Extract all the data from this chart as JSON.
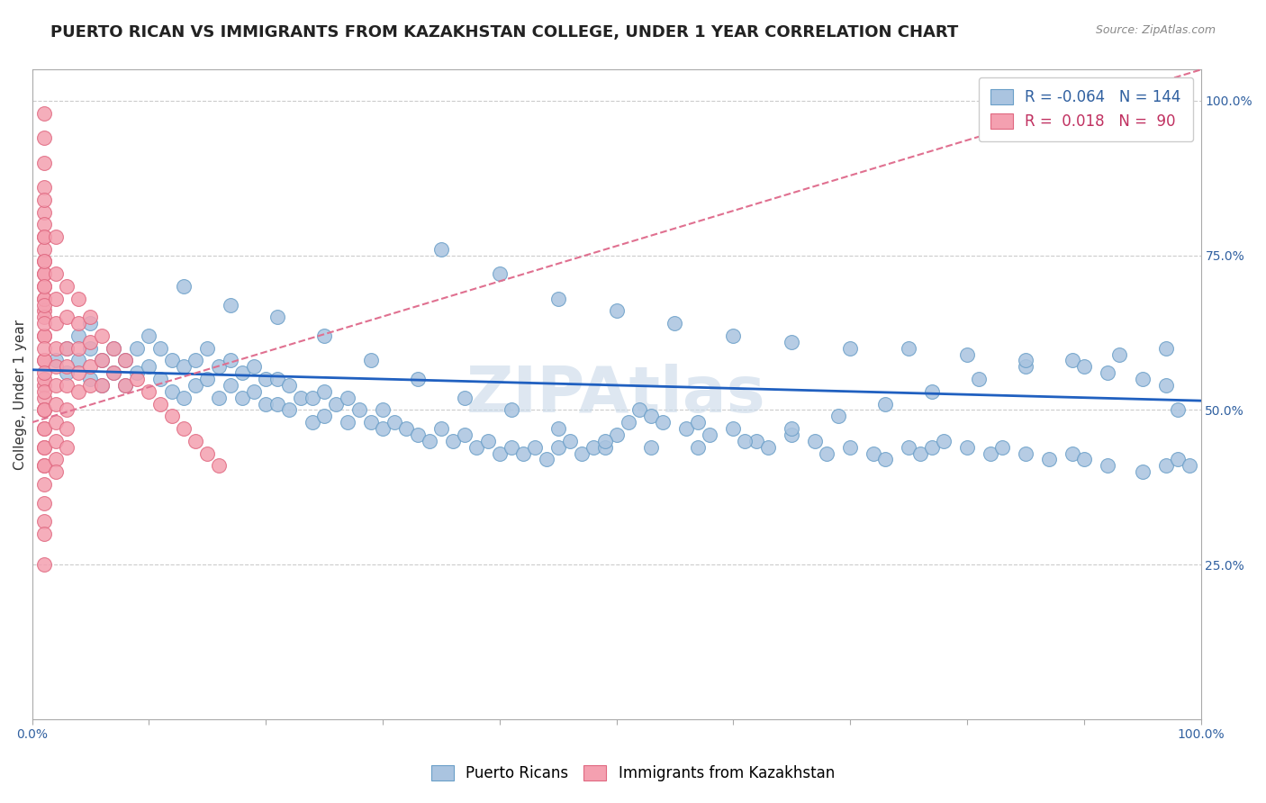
{
  "title": "PUERTO RICAN VS IMMIGRANTS FROM KAZAKHSTAN COLLEGE, UNDER 1 YEAR CORRELATION CHART",
  "source_text": "Source: ZipAtlas.com",
  "ylabel": "College, Under 1 year",
  "right_ytick_labels": [
    "25.0%",
    "50.0%",
    "75.0%",
    "100.0%"
  ],
  "right_ytick_values": [
    0.25,
    0.5,
    0.75,
    1.0
  ],
  "xlim": [
    0.0,
    1.0
  ],
  "ylim": [
    0.0,
    1.05
  ],
  "blue_R": -0.064,
  "blue_N": 144,
  "pink_R": 0.018,
  "pink_N": 90,
  "blue_color": "#aac4e0",
  "pink_color": "#f4a0b0",
  "blue_edge_color": "#6a9fc8",
  "pink_edge_color": "#e06880",
  "blue_line_color": "#2060c0",
  "pink_line_color": "#e07090",
  "legend_blue_fill": "#aac4e0",
  "legend_pink_fill": "#f4a0b0",
  "watermark_text": "ZIPAtlas",
  "watermark_color": "#c8d8e8",
  "title_fontsize": 13,
  "axis_label_fontsize": 11,
  "tick_fontsize": 10,
  "legend_fontsize": 12,
  "source_fontsize": 9,
  "blue_trend_x0": 0.0,
  "blue_trend_y0": 0.565,
  "blue_trend_x1": 1.0,
  "blue_trend_y1": 0.515,
  "pink_trend_x0": 0.0,
  "pink_trend_y0": 0.48,
  "pink_trend_x1": 1.0,
  "pink_trend_y1": 1.05,
  "blue_scatter_x": [
    0.02,
    0.03,
    0.03,
    0.04,
    0.04,
    0.05,
    0.05,
    0.05,
    0.06,
    0.06,
    0.07,
    0.07,
    0.08,
    0.08,
    0.09,
    0.09,
    0.1,
    0.1,
    0.11,
    0.11,
    0.12,
    0.12,
    0.13,
    0.13,
    0.14,
    0.14,
    0.15,
    0.15,
    0.16,
    0.16,
    0.17,
    0.17,
    0.18,
    0.18,
    0.19,
    0.19,
    0.2,
    0.2,
    0.21,
    0.21,
    0.22,
    0.22,
    0.23,
    0.24,
    0.24,
    0.25,
    0.25,
    0.26,
    0.27,
    0.27,
    0.28,
    0.29,
    0.3,
    0.3,
    0.31,
    0.32,
    0.33,
    0.34,
    0.35,
    0.36,
    0.37,
    0.38,
    0.39,
    0.4,
    0.41,
    0.42,
    0.43,
    0.44,
    0.45,
    0.46,
    0.47,
    0.48,
    0.49,
    0.5,
    0.51,
    0.52,
    0.53,
    0.54,
    0.56,
    0.57,
    0.58,
    0.6,
    0.62,
    0.63,
    0.65,
    0.67,
    0.68,
    0.7,
    0.72,
    0.73,
    0.75,
    0.76,
    0.77,
    0.78,
    0.8,
    0.82,
    0.83,
    0.85,
    0.87,
    0.89,
    0.9,
    0.92,
    0.95,
    0.97,
    0.98,
    0.99,
    0.13,
    0.17,
    0.21,
    0.25,
    0.29,
    0.33,
    0.37,
    0.41,
    0.45,
    0.49,
    0.53,
    0.57,
    0.61,
    0.65,
    0.69,
    0.73,
    0.77,
    0.81,
    0.85,
    0.89,
    0.93,
    0.97,
    0.35,
    0.4,
    0.45,
    0.5,
    0.55,
    0.6,
    0.65,
    0.7,
    0.75,
    0.8,
    0.85,
    0.9,
    0.92,
    0.95,
    0.97,
    0.98
  ],
  "blue_scatter_y": [
    0.58,
    0.6,
    0.56,
    0.62,
    0.58,
    0.64,
    0.6,
    0.55,
    0.58,
    0.54,
    0.6,
    0.56,
    0.58,
    0.54,
    0.6,
    0.56,
    0.62,
    0.57,
    0.6,
    0.55,
    0.58,
    0.53,
    0.57,
    0.52,
    0.58,
    0.54,
    0.6,
    0.55,
    0.57,
    0.52,
    0.58,
    0.54,
    0.56,
    0.52,
    0.57,
    0.53,
    0.55,
    0.51,
    0.55,
    0.51,
    0.54,
    0.5,
    0.52,
    0.52,
    0.48,
    0.53,
    0.49,
    0.51,
    0.52,
    0.48,
    0.5,
    0.48,
    0.5,
    0.47,
    0.48,
    0.47,
    0.46,
    0.45,
    0.47,
    0.45,
    0.46,
    0.44,
    0.45,
    0.43,
    0.44,
    0.43,
    0.44,
    0.42,
    0.44,
    0.45,
    0.43,
    0.44,
    0.44,
    0.46,
    0.48,
    0.5,
    0.49,
    0.48,
    0.47,
    0.48,
    0.46,
    0.47,
    0.45,
    0.44,
    0.46,
    0.45,
    0.43,
    0.44,
    0.43,
    0.42,
    0.44,
    0.43,
    0.44,
    0.45,
    0.44,
    0.43,
    0.44,
    0.43,
    0.42,
    0.43,
    0.42,
    0.41,
    0.4,
    0.41,
    0.42,
    0.41,
    0.7,
    0.67,
    0.65,
    0.62,
    0.58,
    0.55,
    0.52,
    0.5,
    0.47,
    0.45,
    0.44,
    0.44,
    0.45,
    0.47,
    0.49,
    0.51,
    0.53,
    0.55,
    0.57,
    0.58,
    0.59,
    0.6,
    0.76,
    0.72,
    0.68,
    0.66,
    0.64,
    0.62,
    0.61,
    0.6,
    0.6,
    0.59,
    0.58,
    0.57,
    0.56,
    0.55,
    0.54,
    0.5
  ],
  "pink_scatter_x": [
    0.01,
    0.01,
    0.01,
    0.01,
    0.01,
    0.01,
    0.01,
    0.01,
    0.01,
    0.01,
    0.01,
    0.01,
    0.01,
    0.01,
    0.01,
    0.01,
    0.01,
    0.01,
    0.01,
    0.01,
    0.01,
    0.01,
    0.01,
    0.01,
    0.01,
    0.01,
    0.01,
    0.01,
    0.01,
    0.01,
    0.01,
    0.01,
    0.01,
    0.01,
    0.01,
    0.01,
    0.01,
    0.01,
    0.01,
    0.01,
    0.01,
    0.01,
    0.01,
    0.01,
    0.01,
    0.02,
    0.02,
    0.02,
    0.02,
    0.02,
    0.02,
    0.02,
    0.02,
    0.02,
    0.02,
    0.02,
    0.02,
    0.03,
    0.03,
    0.03,
    0.03,
    0.03,
    0.03,
    0.03,
    0.03,
    0.04,
    0.04,
    0.04,
    0.04,
    0.04,
    0.05,
    0.05,
    0.05,
    0.05,
    0.06,
    0.06,
    0.06,
    0.07,
    0.07,
    0.08,
    0.08,
    0.09,
    0.1,
    0.11,
    0.12,
    0.13,
    0.14,
    0.15,
    0.16,
    0.01
  ],
  "pink_scatter_y": [
    0.98,
    0.94,
    0.9,
    0.86,
    0.82,
    0.78,
    0.74,
    0.7,
    0.66,
    0.62,
    0.58,
    0.54,
    0.5,
    0.47,
    0.44,
    0.41,
    0.38,
    0.35,
    0.32,
    0.3,
    0.68,
    0.72,
    0.76,
    0.8,
    0.65,
    0.62,
    0.58,
    0.55,
    0.52,
    0.5,
    0.72,
    0.68,
    0.64,
    0.6,
    0.56,
    0.53,
    0.5,
    0.47,
    0.44,
    0.41,
    0.84,
    0.78,
    0.74,
    0.7,
    0.67,
    0.78,
    0.72,
    0.68,
    0.64,
    0.6,
    0.57,
    0.54,
    0.51,
    0.48,
    0.45,
    0.42,
    0.4,
    0.7,
    0.65,
    0.6,
    0.57,
    0.54,
    0.5,
    0.47,
    0.44,
    0.68,
    0.64,
    0.6,
    0.56,
    0.53,
    0.65,
    0.61,
    0.57,
    0.54,
    0.62,
    0.58,
    0.54,
    0.6,
    0.56,
    0.58,
    0.54,
    0.55,
    0.53,
    0.51,
    0.49,
    0.47,
    0.45,
    0.43,
    0.41,
    0.25
  ]
}
